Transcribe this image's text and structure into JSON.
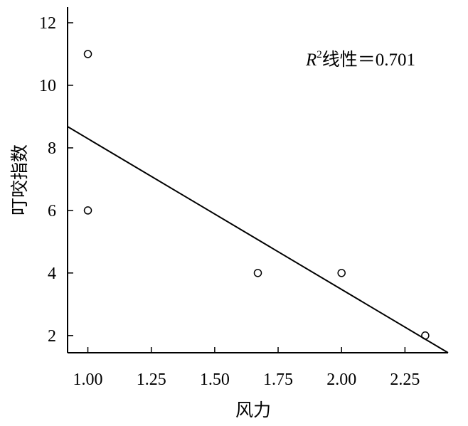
{
  "chart_data": {
    "type": "scatter",
    "xlabel": "风力",
    "ylabel": "叮咬指数",
    "xlim": [
      0.92,
      2.42
    ],
    "ylim": [
      1.45,
      12.5
    ],
    "x_ticks": [
      {
        "value": 1.0,
        "label": "1.00"
      },
      {
        "value": 1.25,
        "label": "1.25"
      },
      {
        "value": 1.5,
        "label": "1.50"
      },
      {
        "value": 1.75,
        "label": "1.75"
      },
      {
        "value": 2.0,
        "label": "2.00"
      },
      {
        "value": 2.25,
        "label": "2.25"
      }
    ],
    "y_ticks": [
      {
        "value": 2,
        "label": "2"
      },
      {
        "value": 4,
        "label": "4"
      },
      {
        "value": 6,
        "label": "6"
      },
      {
        "value": 8,
        "label": "8"
      },
      {
        "value": 10,
        "label": "10"
      },
      {
        "value": 12,
        "label": "12"
      }
    ],
    "points": [
      {
        "x": 1.0,
        "y": 11.0
      },
      {
        "x": 1.0,
        "y": 6.0
      },
      {
        "x": 1.67,
        "y": 4.0
      },
      {
        "x": 2.0,
        "y": 4.0
      },
      {
        "x": 2.33,
        "y": 2.0
      }
    ],
    "fit_line": {
      "x": [
        0.92,
        2.42
      ],
      "y": [
        8.68,
        1.45
      ]
    },
    "annotation": {
      "prefix": "R",
      "sup": "2",
      "text": "线性＝0.701"
    },
    "grid": false
  }
}
